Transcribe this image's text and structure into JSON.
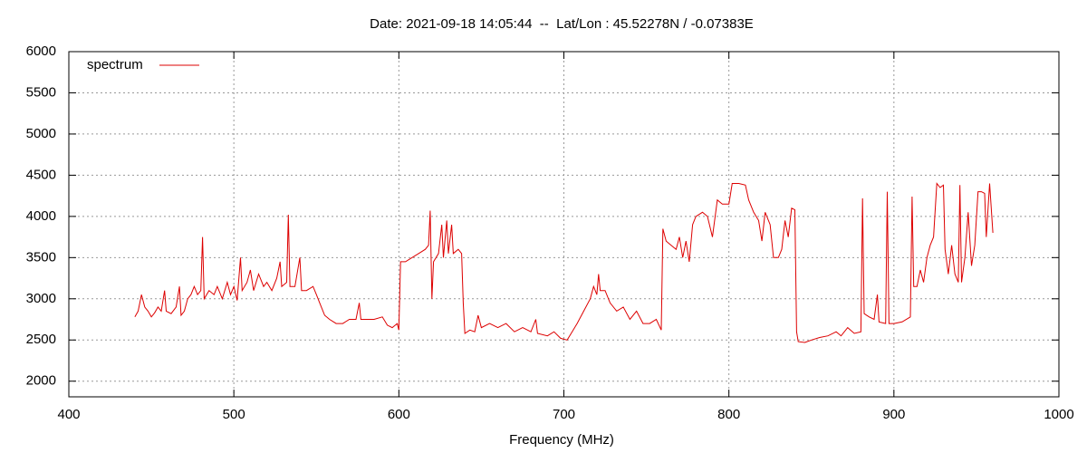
{
  "chart_data": {
    "type": "line",
    "title": "Date: 2021-09-18 14:05:44  --  Lat/Lon : 45.52278N / -0.07383E",
    "x_label": "Frequency (MHz)",
    "legend": "top-left",
    "grid": true,
    "xlim": [
      400,
      1000
    ],
    "xticks": [
      400,
      500,
      600,
      700,
      800,
      900,
      1000
    ],
    "ylim": [
      1810,
      6000
    ],
    "yticks": [
      2000,
      2500,
      3000,
      3500,
      4000,
      4500,
      5000,
      5500,
      6000
    ],
    "series": [
      {
        "name": "spectrum",
        "color": "#dd0000",
        "x": [
          440,
          442,
          444,
          446,
          448,
          450,
          452,
          454,
          456,
          458,
          459,
          462,
          465,
          467,
          468,
          470,
          472,
          474,
          476,
          478,
          480,
          481,
          482,
          485,
          488,
          490,
          493,
          496,
          498,
          500,
          502,
          504,
          505,
          508,
          510,
          512,
          515,
          518,
          520,
          523,
          526,
          528,
          529,
          532,
          533,
          534,
          537,
          540,
          541,
          544,
          548,
          550,
          552,
          555,
          558,
          562,
          566,
          570,
          574,
          576,
          577,
          580,
          585,
          590,
          593,
          596,
          599,
          600,
          601,
          604,
          608,
          612,
          616,
          618,
          619,
          620,
          621,
          624,
          626,
          627,
          629,
          630,
          632,
          633,
          636,
          638,
          639,
          640,
          643,
          646,
          648,
          650,
          655,
          660,
          665,
          670,
          675,
          680,
          683,
          684,
          690,
          694,
          698,
          702,
          705,
          708,
          712,
          716,
          718,
          720,
          721,
          722,
          725,
          728,
          732,
          736,
          740,
          744,
          748,
          752,
          756,
          759,
          760,
          762,
          765,
          768,
          770,
          772,
          774,
          776,
          778,
          780,
          784,
          787,
          790,
          793,
          796,
          800,
          802,
          806,
          810,
          812,
          815,
          818,
          820,
          822,
          825,
          827,
          830,
          832,
          834,
          836,
          838,
          840,
          841,
          842,
          846,
          850,
          855,
          860,
          865,
          868,
          872,
          876,
          880,
          881,
          882,
          885,
          888,
          890,
          891,
          895,
          896,
          897,
          900,
          905,
          910,
          911,
          912,
          914,
          916,
          918,
          920,
          922,
          924,
          926,
          928,
          930,
          931,
          933,
          935,
          937,
          939,
          940,
          941,
          943,
          945,
          947,
          949,
          951,
          953,
          955,
          956,
          958,
          960
        ],
        "values": [
          2780,
          2850,
          3050,
          2900,
          2850,
          2780,
          2830,
          2900,
          2850,
          3100,
          2850,
          2820,
          2900,
          3150,
          2800,
          2850,
          3000,
          3050,
          3150,
          3050,
          3100,
          3750,
          3000,
          3100,
          3050,
          3150,
          3000,
          3200,
          3050,
          3150,
          2980,
          3500,
          3100,
          3200,
          3350,
          3100,
          3300,
          3150,
          3200,
          3100,
          3250,
          3450,
          3150,
          3200,
          4020,
          3150,
          3150,
          3500,
          3100,
          3100,
          3150,
          3050,
          2950,
          2800,
          2750,
          2700,
          2700,
          2750,
          2750,
          2950,
          2750,
          2750,
          2750,
          2780,
          2680,
          2650,
          2700,
          2620,
          3450,
          3450,
          3500,
          3550,
          3600,
          3650,
          4070,
          3000,
          3450,
          3550,
          3900,
          3500,
          3950,
          3550,
          3900,
          3550,
          3600,
          3550,
          2950,
          2580,
          2620,
          2600,
          2800,
          2650,
          2700,
          2650,
          2700,
          2600,
          2650,
          2600,
          2750,
          2580,
          2550,
          2600,
          2520,
          2500,
          2600,
          2700,
          2850,
          3000,
          3150,
          3050,
          3300,
          3100,
          3100,
          2950,
          2850,
          2900,
          2750,
          2850,
          2700,
          2700,
          2750,
          2620,
          3850,
          3700,
          3650,
          3600,
          3750,
          3500,
          3700,
          3450,
          3900,
          4000,
          4050,
          4000,
          3750,
          4200,
          4150,
          4150,
          4400,
          4400,
          4380,
          4200,
          4050,
          3950,
          3700,
          4050,
          3900,
          3500,
          3500,
          3600,
          3950,
          3750,
          4100,
          4080,
          2600,
          2480,
          2470,
          2500,
          2530,
          2550,
          2600,
          2550,
          2650,
          2580,
          2600,
          4220,
          2820,
          2780,
          2750,
          3050,
          2720,
          2700,
          4300,
          2700,
          2700,
          2720,
          2780,
          4240,
          3150,
          3150,
          3350,
          3200,
          3500,
          3650,
          3750,
          4400,
          4350,
          4380,
          3600,
          3300,
          3650,
          3300,
          3200,
          4380,
          3200,
          3500,
          4050,
          3400,
          3650,
          4300,
          4300,
          4280,
          3750,
          4400,
          3800
        ]
      }
    ]
  }
}
